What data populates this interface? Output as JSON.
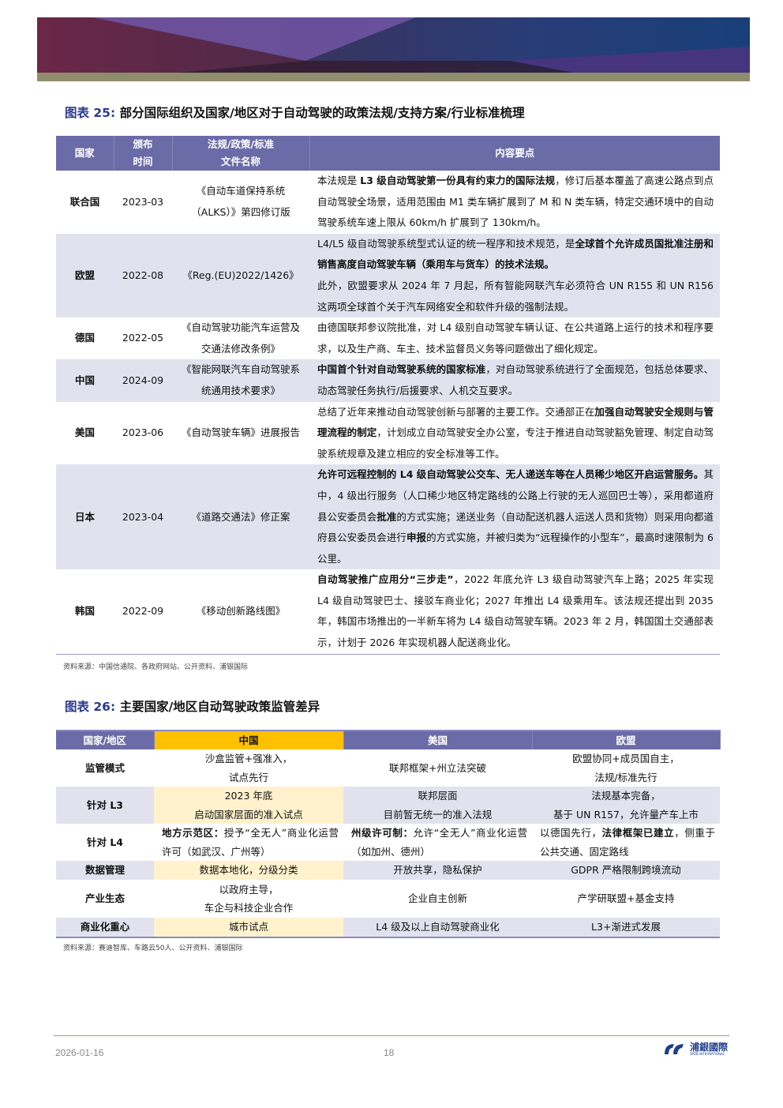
{
  "colors": {
    "header": "#6b6ba8",
    "shade": "#e2e2ef",
    "china_header": "#ffc000",
    "china_shade": "#fff2cc"
  },
  "fig25": {
    "label": "图表 25:",
    "title": "部分国际组织及国家/地区对于自动驾驶的政策法规/支持方案/行业标准梳理",
    "headers": [
      "国家",
      "颁布\n时间",
      "法规/政策/标准\n文件名称",
      "内容要点"
    ],
    "rows": [
      {
        "country": "联合国",
        "date": "2023-03",
        "doc": "《自动车道保持系统（ALKS）》第四修订版",
        "content": [
          {
            "t": "本法规是 "
          },
          {
            "t": "L3 级自动驾驶第一份具有约束力的国际法规",
            "b": true
          },
          {
            "t": "，修订后基本覆盖了高速公路点到点自动驾驶全场景，适用范围由 M1 类车辆扩展到了 M 和 N 类车辆，特定交通环境中的自动驾驶系统车速上限从 60km/h 扩展到了 130km/h。"
          }
        ]
      },
      {
        "country": "欧盟",
        "date": "2022-08",
        "doc": "《Reg.(EU)2022/1426》",
        "content": [
          {
            "t": "L4/L5 级自动驾驶系统型式认证的统一程序和技术规范，是"
          },
          {
            "t": "全球首个允许成员国批准注册和销售高度自动驾驶车辆（乘用车与货车）的技术法规。",
            "b": true
          },
          {
            "t": "此外，欧盟要求从 2024 年 7 月起，所有智能网联汽车必须符合 UN R155 和 UN R156 这两项全球首个关于汽车网络安全和软件升级的强制法规。",
            "br": true
          }
        ]
      },
      {
        "country": "德国",
        "date": "2022-05",
        "doc": "《自动驾驶功能汽车运营及交通法修改条例》",
        "content": [
          {
            "t": "由德国联邦参议院批准，对 L4 级别自动驾驶车辆认证、在公共道路上运行的技术和程序要求，以及生产商、车主、技术监督员义务等问题做出了细化规定。"
          }
        ]
      },
      {
        "country": "中国",
        "date": "2024-09",
        "doc": "《智能网联汽车自动驾驶系统通用技术要求》",
        "content": [
          {
            "t": "中国首个针对自动驾驶系统的国家标准",
            "b": true
          },
          {
            "t": "，对自动驾驶系统进行了全面规范，包括总体要求、动态驾驶任务执行/后援要求、人机交互要求。"
          }
        ]
      },
      {
        "country": "美国",
        "date": "2023-06",
        "doc": "《自动驾驶车辆》进展报告",
        "content": [
          {
            "t": "总结了近年来推动自动驾驶创新与部署的主要工作。交通部正在"
          },
          {
            "t": "加强自动驾驶安全规则与管理流程的制定",
            "b": true
          },
          {
            "t": "，计划成立自动驾驶安全办公室，专注于推进自动驾驶豁免管理、制定自动驾驶系统规章及建立相应的安全标准等工作。"
          }
        ]
      },
      {
        "country": "日本",
        "date": "2023-04",
        "doc": "《道路交通法》修正案",
        "content": [
          {
            "t": "允许可远程控制的 L4 级自动驾驶公交车、无人递送车等在人员稀少地区开启运营服务。",
            "b": true
          },
          {
            "t": "其中，4 级出行服务（人口稀少地区特定路线的公路上行驶的无人巡回巴士等），采用都道府县公安委员会"
          },
          {
            "t": "批准",
            "b": true
          },
          {
            "t": "的方式实施；递送业务（自动配送机器人运送人员和货物）则采用向都道府县公安委员会进行"
          },
          {
            "t": "申报",
            "b": true
          },
          {
            "t": "的方式实施，并被归类为“远程操作的小型车”，最高时速限制为 6 公里。"
          }
        ]
      },
      {
        "country": "韩国",
        "date": "2022-09",
        "doc": "《移动创新路线图》",
        "content": [
          {
            "t": "自动驾驶推广应用分“三步走”",
            "b": true
          },
          {
            "t": "，2022 年底允许 L3 级自动驾驶汽车上路；2025 年实现 L4 级自动驾驶巴士、接驳车商业化；2027 年推出 L4 级乘用车。该法规还提出到 2035 年，韩国市场推出的一半新车将为 L4 级自动驾驶车辆。2023 年 2 月，韩国国土交通部表示，计划于 2026 年实现机器人配送商业化。"
          }
        ]
      }
    ],
    "source": "资料来源：中国信通院、各政府网站、公开资料、浦银国际"
  },
  "fig26": {
    "label": "图表 26:",
    "title": "主要国家/地区自动驾驶政策监管差异",
    "headers": [
      "国家/地区",
      "中国",
      "美国",
      "欧盟"
    ],
    "rows": [
      {
        "dim": "监管模式",
        "cells": [
          [
            {
              "t": "沙盒监管+强准入，\n试点先行"
            }
          ],
          [
            {
              "t": "联邦框架+州立法突破"
            }
          ],
          [
            {
              "t": "欧盟协同+成员国自主，\n法规/标准先行"
            }
          ]
        ]
      },
      {
        "dim": "针对 L3",
        "cells": [
          [
            {
              "t": "2023 年底\n启动国家层面的准入试点"
            }
          ],
          [
            {
              "t": "联邦层面\n目前暂无统一的准入法规"
            }
          ],
          [
            {
              "t": "法规基本完备，\n基于 UN R157，允许量产车上市"
            }
          ]
        ]
      },
      {
        "dim": "针对 L4",
        "left": true,
        "cells": [
          [
            {
              "t": "地方示范区：",
              "b": true
            },
            {
              "t": "授予“全无人”商业化运营许可（如武汉、广州等）"
            }
          ],
          [
            {
              "t": "州级许可制：",
              "b": true
            },
            {
              "t": "允许“全无人”商业化运营（如加州、德州）"
            }
          ],
          [
            {
              "t": "以德国先行，"
            },
            {
              "t": "法律框架已建立",
              "b": true
            },
            {
              "t": "，侧重于公共交通、固定路线"
            }
          ]
        ]
      },
      {
        "dim": "数据管理",
        "cells": [
          [
            {
              "t": "数据本地化，分级分类"
            }
          ],
          [
            {
              "t": "开放共享，隐私保护"
            }
          ],
          [
            {
              "t": "GDPR 严格限制跨境流动"
            }
          ]
        ]
      },
      {
        "dim": "产业生态",
        "cells": [
          [
            {
              "t": "以政府主导，\n车企与科技企业合作"
            }
          ],
          [
            {
              "t": "企业自主创新"
            }
          ],
          [
            {
              "t": "产学研联盟+基金支持"
            }
          ]
        ]
      },
      {
        "dim": "商业化重心",
        "cells": [
          [
            {
              "t": "城市试点"
            }
          ],
          [
            {
              "t": "L4 级及以上自动驾驶商业化"
            }
          ],
          [
            {
              "t": "L3+渐进式发展"
            }
          ]
        ]
      }
    ],
    "source": "资料来源：赛迪智库、车路云50人、公开资料、浦银国际"
  },
  "footer": {
    "date": "2026-01-16",
    "page": "18",
    "logo_cn": "浦銀國際",
    "logo_en": "SPDB INTERNATIONAL"
  }
}
